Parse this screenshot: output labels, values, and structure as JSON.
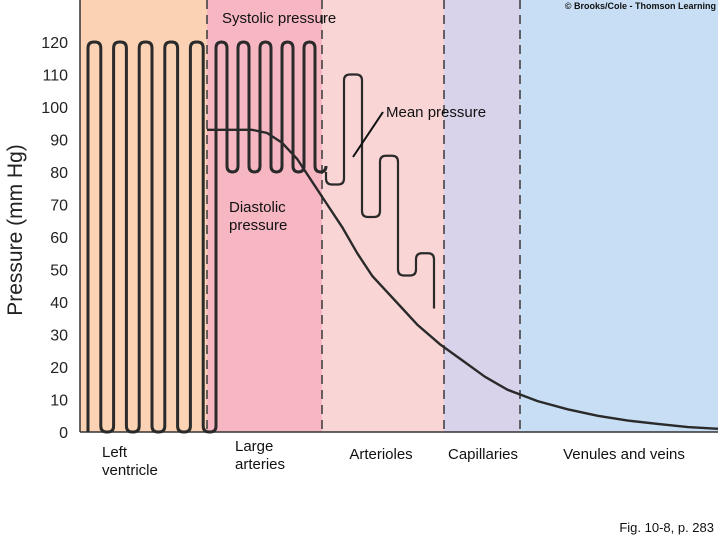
{
  "copyright": "© Brooks/Cole - Thomson Learning",
  "caption": "Fig. 10-8, p. 283",
  "chart_data": {
    "type": "line",
    "ylabel": "Pressure (mm Hg)",
    "ylim": [
      0,
      120
    ],
    "yticks": [
      "0",
      "10",
      "20",
      "30",
      "40",
      "50",
      "60",
      "70",
      "80",
      "90",
      "100",
      "110",
      "120"
    ],
    "regions": [
      {
        "name": "Left ventricle",
        "lines": [
          "Left",
          "ventricle"
        ],
        "color": "#fbd3b4"
      },
      {
        "name": "Large arteries",
        "lines": [
          "Large",
          "arteries"
        ],
        "color": "#f6b7c3"
      },
      {
        "name": "Arterioles",
        "lines": [
          "Arterioles"
        ],
        "color": "#fad5d5"
      },
      {
        "name": "Capillaries",
        "lines": [
          "Capillaries"
        ],
        "color": "#d8d3ea"
      },
      {
        "name": "Venules and veins",
        "lines": [
          "Venules and veins"
        ],
        "color": "#c7def4"
      }
    ],
    "annotations": {
      "systolic": "Systolic pressure",
      "mean": "Mean pressure",
      "diastolic": [
        "Diastolic",
        "pressure"
      ]
    },
    "left_ventricle_cycles": {
      "count": 5,
      "max": 120,
      "min": 0
    },
    "large_artery_cycles": {
      "count": 5,
      "max": 120,
      "min": 80
    },
    "arteriole_cycles": [
      {
        "max": 110,
        "min": 78
      },
      {
        "max": 85,
        "min": 68
      },
      {
        "max": 55,
        "min": 50
      }
    ],
    "mean_pressure_curve": [
      {
        "x": 0.0,
        "y": 93
      },
      {
        "x": 0.3,
        "y": 93
      },
      {
        "x": 0.4,
        "y": 92
      },
      {
        "x": 0.5,
        "y": 89
      },
      {
        "x": 0.6,
        "y": 84
      },
      {
        "x": 0.7,
        "y": 77
      },
      {
        "x": 0.8,
        "y": 70
      },
      {
        "x": 0.9,
        "y": 63
      },
      {
        "x": 1.0,
        "y": 55
      },
      {
        "x": 1.1,
        "y": 48
      },
      {
        "x": 1.2,
        "y": 43
      },
      {
        "x": 1.3,
        "y": 38
      },
      {
        "x": 1.4,
        "y": 33
      },
      {
        "x": 1.55,
        "y": 27
      },
      {
        "x": 1.7,
        "y": 22
      },
      {
        "x": 1.85,
        "y": 17
      },
      {
        "x": 2.0,
        "y": 13
      },
      {
        "x": 2.2,
        "y": 9.5
      },
      {
        "x": 2.4,
        "y": 7
      },
      {
        "x": 2.6,
        "y": 5
      },
      {
        "x": 2.8,
        "y": 3.5
      },
      {
        "x": 3.0,
        "y": 2.5
      },
      {
        "x": 3.2,
        "y": 1.5
      },
      {
        "x": 3.4,
        "y": 1
      }
    ],
    "axis_colors": {
      "trace": "#2a2a2a",
      "divider": "#444444"
    }
  }
}
